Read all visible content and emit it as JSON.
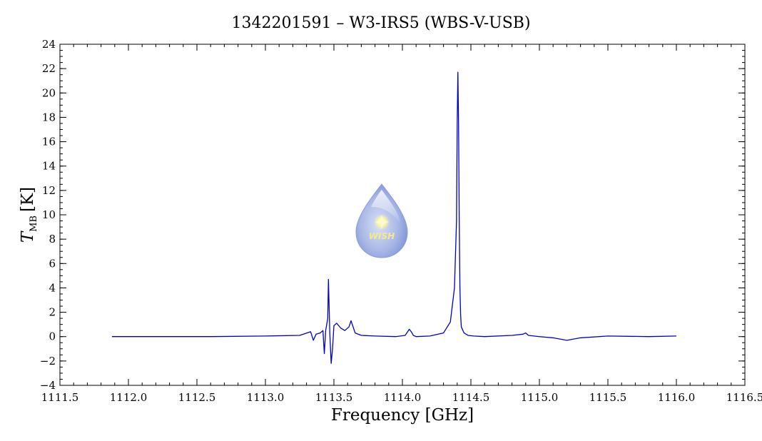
{
  "chart_data": {
    "type": "line",
    "title": "1342201591 – W3-IRS5 (WBS-V-USB)",
    "xlabel": "Frequency [GHz]",
    "ylabel": {
      "main": "T",
      "subscript": "MB",
      "unit": "[K]"
    },
    "xlim": [
      1111.5,
      1116.5
    ],
    "ylim": [
      -4,
      24
    ],
    "xticks": [
      "1111.5",
      "1112.0",
      "1112.5",
      "1113.0",
      "1113.5",
      "1114.0",
      "1114.5",
      "1115.0",
      "1115.5",
      "1116.0",
      "1116.5"
    ],
    "yticks": [
      "−4",
      "−2",
      "0",
      "2",
      "4",
      "6",
      "8",
      "10",
      "12",
      "14",
      "16",
      "18",
      "20",
      "22",
      "24"
    ],
    "grid": false,
    "line_color": "#0000cc",
    "series": [
      {
        "x": [
          1111.88,
          1112.2,
          1112.6,
          1113.0,
          1113.25,
          1113.33,
          1113.35,
          1113.37,
          1113.4,
          1113.42,
          1113.43,
          1113.44,
          1113.455,
          1113.46,
          1113.465,
          1113.47,
          1113.48,
          1113.49,
          1113.5,
          1113.52,
          1113.55,
          1113.58,
          1113.61,
          1113.625,
          1113.64,
          1113.655,
          1113.7,
          1113.8,
          1113.95,
          1114.02,
          1114.05,
          1114.065,
          1114.08,
          1114.1,
          1114.2,
          1114.3,
          1114.35,
          1114.38,
          1114.395,
          1114.4,
          1114.405,
          1114.41,
          1114.415,
          1114.42,
          1114.425,
          1114.43,
          1114.45,
          1114.48,
          1114.52,
          1114.6,
          1114.8,
          1114.88,
          1114.9,
          1114.92,
          1115.0,
          1115.1,
          1115.2,
          1115.3,
          1115.5,
          1115.8,
          1116.0
        ],
        "y": [
          0.0,
          0.0,
          0.0,
          0.05,
          0.1,
          0.4,
          -0.3,
          0.2,
          0.3,
          0.5,
          -1.4,
          0.5,
          1.5,
          4.7,
          2.5,
          0.3,
          -2.2,
          -1.0,
          0.9,
          1.1,
          0.7,
          0.5,
          0.8,
          1.3,
          0.8,
          0.3,
          0.1,
          0.05,
          0.0,
          0.1,
          0.6,
          0.4,
          0.1,
          0.0,
          0.05,
          0.3,
          1.2,
          4.0,
          9.5,
          17.5,
          21.7,
          17.4,
          9.5,
          4.0,
          1.8,
          0.8,
          0.3,
          0.1,
          0.05,
          0.0,
          0.1,
          0.2,
          0.3,
          0.1,
          0.0,
          -0.1,
          -0.3,
          -0.1,
          0.05,
          0.0,
          0.05
        ]
      }
    ]
  },
  "logo": {
    "text": "WISH",
    "name": "wish-logo"
  }
}
